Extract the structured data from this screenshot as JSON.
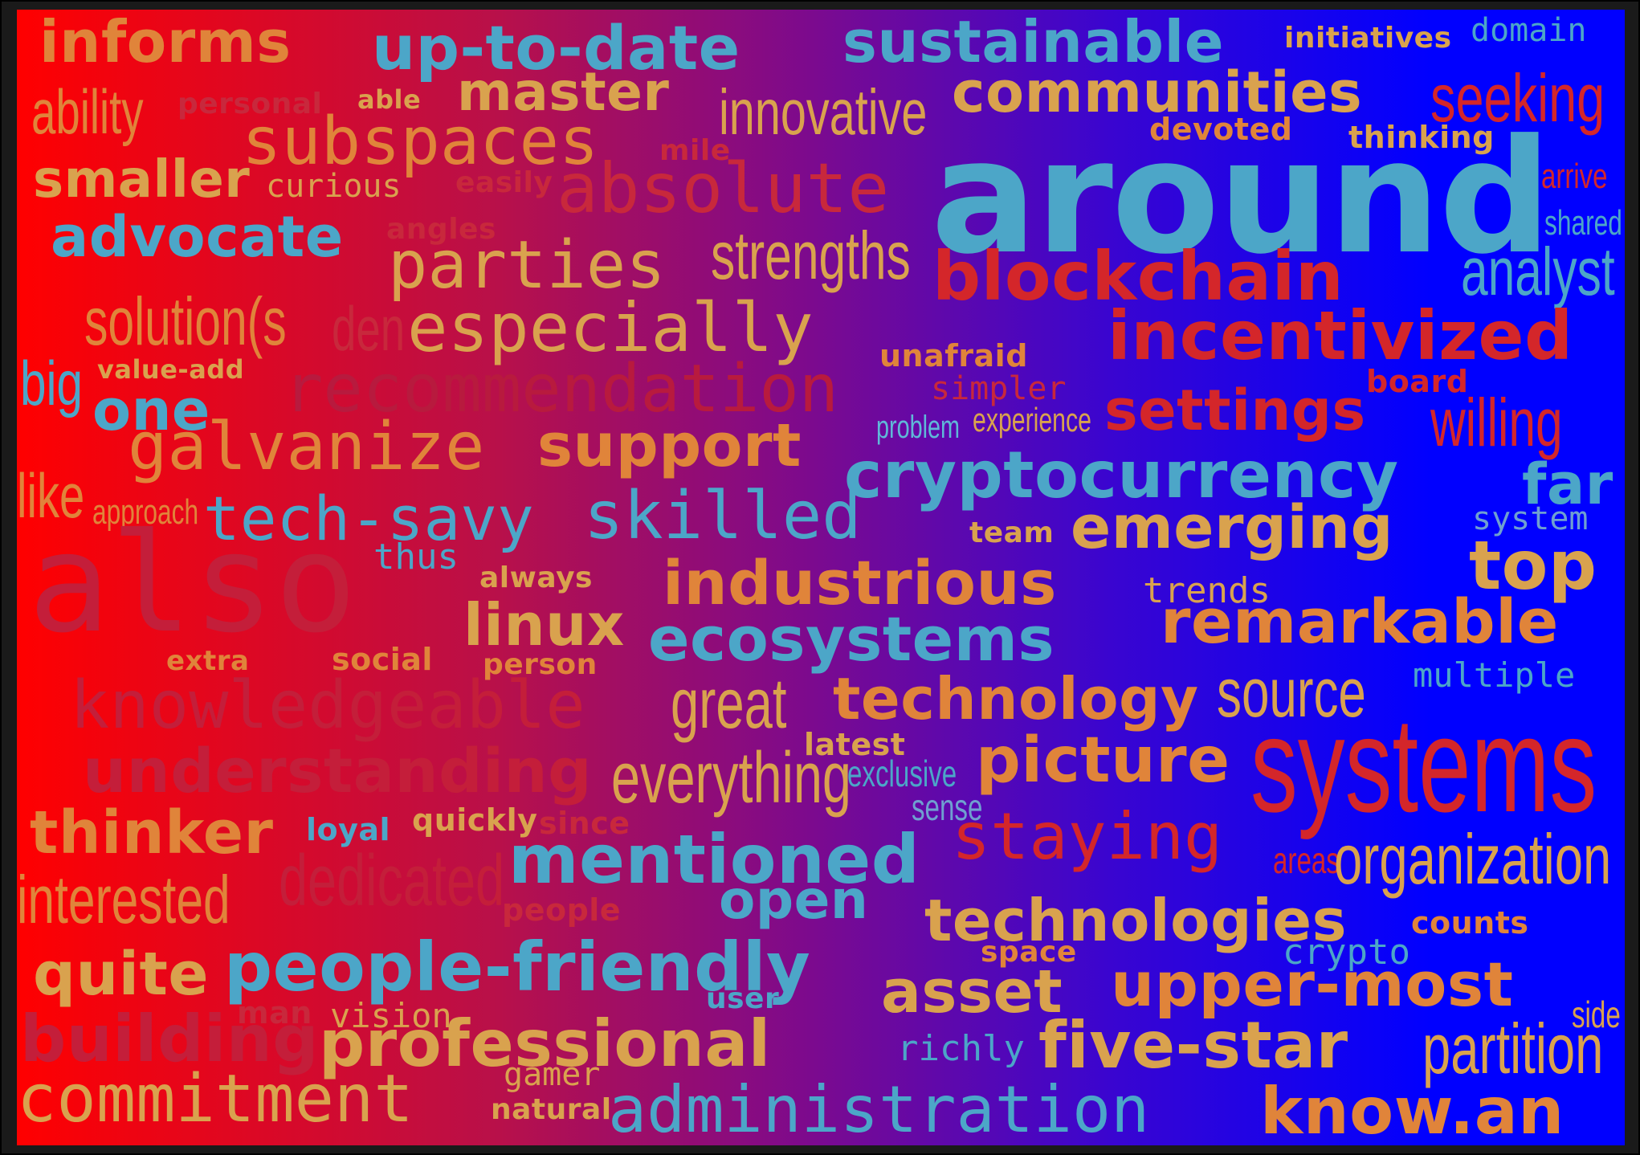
{
  "palette": {
    "sky": "#4ca6c8",
    "sand": "#d9a24e",
    "orange": "#e0843a",
    "red": "#d4262a",
    "dim_red": "#c8283c",
    "dark_red": "#b01a2a",
    "light_blue": "#5fb8d8",
    "pale_blue": "#6fa0d0",
    "muted": "#a03060"
  },
  "words": [
    {
      "id": "informs",
      "text": "informs"
    },
    {
      "id": "up-to-date",
      "text": "up-to-date"
    },
    {
      "id": "sustainable",
      "text": "sustainable"
    },
    {
      "id": "initiatives",
      "text": "initiatives"
    },
    {
      "id": "domain",
      "text": "domain"
    },
    {
      "id": "ability",
      "text": "ability"
    },
    {
      "id": "personal",
      "text": "personal"
    },
    {
      "id": "able",
      "text": "able"
    },
    {
      "id": "master",
      "text": "master"
    },
    {
      "id": "innovative",
      "text": "innovative"
    },
    {
      "id": "communities",
      "text": "communities"
    },
    {
      "id": "seeking",
      "text": "seeking"
    },
    {
      "id": "subspaces",
      "text": "subspaces"
    },
    {
      "id": "mile",
      "text": "mile"
    },
    {
      "id": "devoted",
      "text": "devoted"
    },
    {
      "id": "thinking",
      "text": "thinking"
    },
    {
      "id": "smaller",
      "text": "smaller"
    },
    {
      "id": "curious",
      "text": "curious"
    },
    {
      "id": "easily",
      "text": "easily"
    },
    {
      "id": "absolute",
      "text": "absolute"
    },
    {
      "id": "around",
      "text": "around"
    },
    {
      "id": "arrive",
      "text": "arrive"
    },
    {
      "id": "advocate",
      "text": "advocate"
    },
    {
      "id": "angles",
      "text": "angles"
    },
    {
      "id": "shared",
      "text": "shared"
    },
    {
      "id": "parties",
      "text": "parties"
    },
    {
      "id": "strengths",
      "text": "strengths"
    },
    {
      "id": "blockchain",
      "text": "blockchain"
    },
    {
      "id": "analyst",
      "text": "analyst"
    },
    {
      "id": "solution",
      "text": "solution(s"
    },
    {
      "id": "den",
      "text": "den"
    },
    {
      "id": "especially",
      "text": "especially"
    },
    {
      "id": "incentivized",
      "text": "incentivized"
    },
    {
      "id": "unafraid",
      "text": "unafraid"
    },
    {
      "id": "big",
      "text": "big"
    },
    {
      "id": "value-add",
      "text": "value-add"
    },
    {
      "id": "recommendation",
      "text": "recommendation"
    },
    {
      "id": "board",
      "text": "board"
    },
    {
      "id": "one",
      "text": "one"
    },
    {
      "id": "simpler",
      "text": "simpler"
    },
    {
      "id": "settings",
      "text": "settings"
    },
    {
      "id": "willing",
      "text": "willing"
    },
    {
      "id": "problem",
      "text": "problem"
    },
    {
      "id": "experience",
      "text": "experience"
    },
    {
      "id": "galvanize",
      "text": "galvanize"
    },
    {
      "id": "support",
      "text": "support"
    },
    {
      "id": "cryptocurrency",
      "text": "cryptocurrency"
    },
    {
      "id": "far",
      "text": "far"
    },
    {
      "id": "like",
      "text": "like"
    },
    {
      "id": "approach",
      "text": "approach"
    },
    {
      "id": "tech-savy",
      "text": "tech-savy"
    },
    {
      "id": "skilled",
      "text": "skilled"
    },
    {
      "id": "team",
      "text": "team"
    },
    {
      "id": "emerging",
      "text": "emerging"
    },
    {
      "id": "system",
      "text": "system"
    },
    {
      "id": "also",
      "text": "also"
    },
    {
      "id": "thus",
      "text": "thus"
    },
    {
      "id": "always",
      "text": "always"
    },
    {
      "id": "industrious",
      "text": "industrious"
    },
    {
      "id": "top",
      "text": "top"
    },
    {
      "id": "trends",
      "text": "trends"
    },
    {
      "id": "linux",
      "text": "linux"
    },
    {
      "id": "ecosystems",
      "text": "ecosystems"
    },
    {
      "id": "remarkable",
      "text": "remarkable"
    },
    {
      "id": "extra",
      "text": "extra"
    },
    {
      "id": "social",
      "text": "social"
    },
    {
      "id": "person",
      "text": "person"
    },
    {
      "id": "multiple",
      "text": "multiple"
    },
    {
      "id": "knowledgeable",
      "text": "knowledgeable"
    },
    {
      "id": "great",
      "text": "great"
    },
    {
      "id": "technology",
      "text": "technology"
    },
    {
      "id": "source",
      "text": "source"
    },
    {
      "id": "latest",
      "text": "latest"
    },
    {
      "id": "systems",
      "text": "systems"
    },
    {
      "id": "understanding",
      "text": "understanding"
    },
    {
      "id": "everything",
      "text": "everything"
    },
    {
      "id": "exclusive",
      "text": "exclusive"
    },
    {
      "id": "picture",
      "text": "picture"
    },
    {
      "id": "sense",
      "text": "sense"
    },
    {
      "id": "thinker",
      "text": "thinker"
    },
    {
      "id": "loyal",
      "text": "loyal"
    },
    {
      "id": "quickly",
      "text": "quickly"
    },
    {
      "id": "since",
      "text": "since"
    },
    {
      "id": "staying",
      "text": "staying"
    },
    {
      "id": "mentioned",
      "text": "mentioned"
    },
    {
      "id": "areas",
      "text": "areas"
    },
    {
      "id": "organization",
      "text": "organization"
    },
    {
      "id": "interested",
      "text": "interested"
    },
    {
      "id": "dedicated",
      "text": "dedicated"
    },
    {
      "id": "open",
      "text": "open"
    },
    {
      "id": "people",
      "text": "people"
    },
    {
      "id": "technologies",
      "text": "technologies"
    },
    {
      "id": "counts",
      "text": "counts"
    },
    {
      "id": "quite",
      "text": "quite"
    },
    {
      "id": "people-friendly",
      "text": "people-friendly"
    },
    {
      "id": "space",
      "text": "space"
    },
    {
      "id": "crypto",
      "text": "crypto"
    },
    {
      "id": "user",
      "text": "user"
    },
    {
      "id": "asset",
      "text": "asset"
    },
    {
      "id": "upper-most",
      "text": "upper-most"
    },
    {
      "id": "man",
      "text": "man"
    },
    {
      "id": "vision",
      "text": "vision"
    },
    {
      "id": "side",
      "text": "side"
    },
    {
      "id": "building",
      "text": "building"
    },
    {
      "id": "professional",
      "text": "professional"
    },
    {
      "id": "richly",
      "text": "richly"
    },
    {
      "id": "five-star",
      "text": "five-star"
    },
    {
      "id": "partition",
      "text": "partition"
    },
    {
      "id": "gamer",
      "text": "gamer"
    },
    {
      "id": "commitment",
      "text": "commitment"
    },
    {
      "id": "natural",
      "text": "natural"
    },
    {
      "id": "administration",
      "text": "administration"
    },
    {
      "id": "know.an",
      "text": "know.an"
    }
  ]
}
